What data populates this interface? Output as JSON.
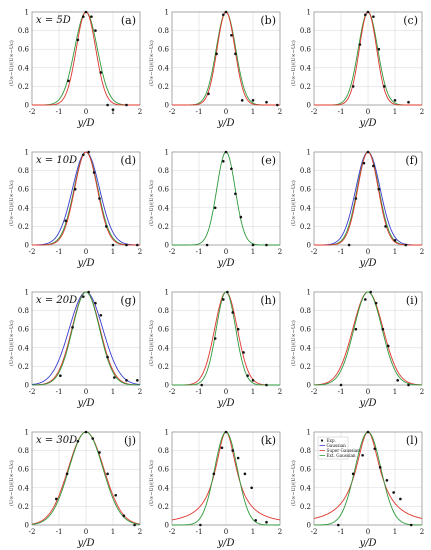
{
  "figure": {
    "x_axis_label": "y/D",
    "y_axis_label": "(U∞−U)/(U∞−Uc)",
    "colors": {
      "exp": "#111111",
      "gaussian": "#3b3bcc",
      "super_gaussian": "#e0342c",
      "ext_gaussian": "#2e9a3a",
      "grid": "#d6d6d6",
      "axis": "#8c8c8c"
    }
  },
  "chart_data": [
    {
      "type": "line",
      "panel_label": "(a)",
      "row_label": "x = 5D",
      "xlim": [
        -2,
        2
      ],
      "ylim": [
        0,
        1
      ],
      "x_ticks": [
        -2,
        -1,
        0,
        1,
        2
      ],
      "y_ticks": [
        0,
        0.2,
        0.4,
        0.6,
        0.8,
        1
      ],
      "grid": true,
      "series": [
        {
          "name": "Ext. Gaussian",
          "kind": "gauss",
          "mu": 0.0,
          "sigma": 0.42
        },
        {
          "name": "Super Gaussian",
          "kind": "gauss",
          "mu": 0.0,
          "sigma": 0.36
        }
      ],
      "points": [
        [
          -0.65,
          0.26
        ],
        [
          -0.3,
          0.7
        ],
        [
          -0.1,
          0.95
        ],
        [
          0.0,
          1.0
        ],
        [
          0.2,
          0.95
        ],
        [
          0.35,
          0.8
        ],
        [
          0.55,
          0.35
        ],
        [
          0.8,
          0.0
        ],
        [
          1.0,
          -0.05
        ],
        [
          1.5,
          0.0
        ]
      ]
    },
    {
      "type": "line",
      "panel_label": "(b)",
      "row_label": "",
      "xlim": [
        -2,
        2
      ],
      "ylim": [
        0,
        1
      ],
      "x_ticks": [
        -2,
        -1,
        0,
        1,
        2
      ],
      "y_ticks": [
        0,
        0.2,
        0.4,
        0.6,
        0.8,
        1
      ],
      "grid": true,
      "series": [
        {
          "name": "Ext. Gaussian",
          "kind": "gauss",
          "mu": 0.0,
          "sigma": 0.36
        },
        {
          "name": "Super Gaussian",
          "kind": "gauss",
          "mu": 0.0,
          "sigma": 0.33
        }
      ],
      "points": [
        [
          -0.65,
          0.12
        ],
        [
          -0.35,
          0.55
        ],
        [
          -0.1,
          0.97
        ],
        [
          0.0,
          1.0
        ],
        [
          0.2,
          0.75
        ],
        [
          0.35,
          0.55
        ],
        [
          0.6,
          0.05
        ],
        [
          1.0,
          0.05
        ],
        [
          1.5,
          0.03
        ],
        [
          1.9,
          0.0
        ]
      ]
    },
    {
      "type": "line",
      "panel_label": "(c)",
      "row_label": "",
      "xlim": [
        -2,
        2
      ],
      "ylim": [
        0,
        1
      ],
      "x_ticks": [
        -2,
        -1,
        0,
        1,
        2
      ],
      "y_ticks": [
        0,
        0.2,
        0.4,
        0.6,
        0.8,
        1
      ],
      "grid": true,
      "series": [
        {
          "name": "Ext. Gaussian",
          "kind": "gauss",
          "mu": 0.0,
          "sigma": 0.36
        },
        {
          "name": "Super Gaussian",
          "kind": "gauss",
          "mu": 0.0,
          "sigma": 0.32
        }
      ],
      "points": [
        [
          -0.55,
          0.2
        ],
        [
          -0.3,
          0.65
        ],
        [
          -0.1,
          0.97
        ],
        [
          0.0,
          1.0
        ],
        [
          0.2,
          0.95
        ],
        [
          0.4,
          0.6
        ],
        [
          0.6,
          0.2
        ],
        [
          1.0,
          0.05
        ],
        [
          1.5,
          0.03
        ]
      ]
    },
    {
      "type": "line",
      "panel_label": "(d)",
      "row_label": "x = 10D",
      "xlim": [
        -2,
        2
      ],
      "ylim": [
        0,
        1
      ],
      "x_ticks": [
        -2,
        -1,
        0,
        1,
        2
      ],
      "y_ticks": [
        0,
        0.2,
        0.4,
        0.6,
        0.8,
        1
      ],
      "grid": true,
      "series": [
        {
          "name": "Gaussian",
          "kind": "gauss",
          "mu": 0.0,
          "sigma": 0.5
        },
        {
          "name": "Ext. Gaussian",
          "kind": "gauss",
          "mu": 0.0,
          "sigma": 0.44
        },
        {
          "name": "Super Gaussian",
          "kind": "gauss",
          "mu": 0.0,
          "sigma": 0.42
        }
      ],
      "points": [
        [
          -0.75,
          0.26
        ],
        [
          -0.4,
          0.6
        ],
        [
          -0.1,
          0.97
        ],
        [
          0.1,
          1.0
        ],
        [
          0.3,
          0.78
        ],
        [
          0.5,
          0.5
        ],
        [
          0.75,
          0.2
        ],
        [
          1.0,
          0.0
        ],
        [
          1.5,
          0.0
        ],
        [
          1.9,
          0.0
        ]
      ]
    },
    {
      "type": "line",
      "panel_label": "(e)",
      "row_label": "",
      "xlim": [
        -2,
        2
      ],
      "ylim": [
        0,
        1
      ],
      "x_ticks": [
        -2,
        -1,
        0,
        1,
        2
      ],
      "y_ticks": [
        0,
        0.2,
        0.4,
        0.6,
        0.8,
        1
      ],
      "grid": true,
      "series": [
        {
          "name": "Ext. Gaussian",
          "kind": "gauss",
          "mu": 0.0,
          "sigma": 0.34
        }
      ],
      "points": [
        [
          -0.7,
          0.0
        ],
        [
          -0.4,
          0.4
        ],
        [
          -0.1,
          0.9
        ],
        [
          0.0,
          1.0
        ],
        [
          0.2,
          0.82
        ],
        [
          0.35,
          0.55
        ],
        [
          0.55,
          0.3
        ],
        [
          1.0,
          0.0
        ],
        [
          1.5,
          0.0
        ]
      ]
    },
    {
      "type": "line",
      "panel_label": "(f)",
      "row_label": "",
      "xlim": [
        -2,
        2
      ],
      "ylim": [
        0,
        1
      ],
      "x_ticks": [
        -2,
        -1,
        0,
        1,
        2
      ],
      "y_ticks": [
        0,
        0.2,
        0.4,
        0.6,
        0.8,
        1
      ],
      "grid": true,
      "series": [
        {
          "name": "Gaussian",
          "kind": "gauss",
          "mu": 0.0,
          "sigma": 0.45
        },
        {
          "name": "Ext. Gaussian",
          "kind": "gauss",
          "mu": 0.0,
          "sigma": 0.4
        },
        {
          "name": "Super Gaussian",
          "kind": "gauss",
          "mu": 0.0,
          "sigma": 0.38
        }
      ],
      "points": [
        [
          -0.7,
          0.0
        ],
        [
          -0.45,
          0.5
        ],
        [
          -0.15,
          0.88
        ],
        [
          0.0,
          1.0
        ],
        [
          0.2,
          0.85
        ],
        [
          0.4,
          0.6
        ],
        [
          0.65,
          0.2
        ],
        [
          1.0,
          0.05
        ],
        [
          1.4,
          0.0
        ]
      ]
    },
    {
      "type": "line",
      "panel_label": "(g)",
      "row_label": "x = 20D",
      "xlim": [
        -2,
        2
      ],
      "ylim": [
        0,
        1
      ],
      "x_ticks": [
        -2,
        -1,
        0,
        1,
        2
      ],
      "y_ticks": [
        0,
        0.2,
        0.4,
        0.6,
        0.8,
        1
      ],
      "grid": true,
      "series": [
        {
          "name": "Gaussian",
          "kind": "gauss",
          "mu": 0.0,
          "sigma": 0.62
        },
        {
          "name": "Super Gaussian",
          "kind": "gauss",
          "mu": 0.0,
          "sigma": 0.52
        },
        {
          "name": "Ext. Gaussian",
          "kind": "gauss",
          "mu": 0.0,
          "sigma": 0.5
        }
      ],
      "points": [
        [
          -0.95,
          0.1
        ],
        [
          -0.5,
          0.62
        ],
        [
          -0.1,
          0.95
        ],
        [
          0.1,
          1.0
        ],
        [
          0.35,
          0.88
        ],
        [
          0.55,
          0.75
        ],
        [
          0.8,
          0.3
        ],
        [
          1.05,
          0.08
        ],
        [
          1.5,
          0.05
        ],
        [
          1.9,
          0.05
        ]
      ]
    },
    {
      "type": "line",
      "panel_label": "(h)",
      "row_label": "",
      "xlim": [
        -2,
        2
      ],
      "ylim": [
        0,
        1
      ],
      "x_ticks": [
        -2,
        -1,
        0,
        1,
        2
      ],
      "y_ticks": [
        0,
        0.2,
        0.4,
        0.6,
        0.8,
        1
      ],
      "grid": true,
      "series": [
        {
          "name": "Super Gaussian",
          "kind": "gauss",
          "mu": 0.0,
          "sigma": 0.42
        },
        {
          "name": "Ext. Gaussian",
          "kind": "gauss",
          "mu": 0.0,
          "sigma": 0.36
        }
      ],
      "points": [
        [
          -0.9,
          0.0
        ],
        [
          -0.4,
          0.5
        ],
        [
          -0.1,
          0.92
        ],
        [
          0.05,
          1.0
        ],
        [
          0.25,
          0.78
        ],
        [
          0.45,
          0.6
        ],
        [
          0.65,
          0.35
        ],
        [
          0.8,
          0.1
        ],
        [
          1.0,
          0.05
        ],
        [
          1.5,
          0.0
        ]
      ]
    },
    {
      "type": "line",
      "panel_label": "(i)",
      "row_label": "",
      "xlim": [
        -2,
        2
      ],
      "ylim": [
        0,
        1
      ],
      "x_ticks": [
        -2,
        -1,
        0,
        1,
        2
      ],
      "y_ticks": [
        0,
        0.2,
        0.4,
        0.6,
        0.8,
        1
      ],
      "grid": true,
      "series": [
        {
          "name": "Super Gaussian",
          "kind": "gauss",
          "mu": 0.0,
          "sigma": 0.56
        },
        {
          "name": "Ext. Gaussian",
          "kind": "gauss",
          "mu": 0.0,
          "sigma": 0.52
        }
      ],
      "points": [
        [
          -1.0,
          0.0
        ],
        [
          -0.45,
          0.6
        ],
        [
          -0.1,
          0.92
        ],
        [
          0.1,
          1.0
        ],
        [
          0.3,
          0.88
        ],
        [
          0.55,
          0.6
        ],
        [
          0.75,
          0.42
        ],
        [
          1.1,
          0.05
        ],
        [
          1.5,
          0.0
        ]
      ]
    },
    {
      "type": "line",
      "panel_label": "(j)",
      "row_label": "x = 30D",
      "xlim": [
        -2,
        2
      ],
      "ylim": [
        0,
        1
      ],
      "x_ticks": [
        -2,
        -1,
        0,
        1,
        2
      ],
      "y_ticks": [
        0,
        0.2,
        0.4,
        0.6,
        0.8,
        1
      ],
      "grid": true,
      "series": [
        {
          "name": "Super Gaussian",
          "kind": "gauss",
          "mu": 0.0,
          "sigma": 0.66
        },
        {
          "name": "Ext. Gaussian",
          "kind": "gauss",
          "mu": 0.0,
          "sigma": 0.63
        }
      ],
      "points": [
        [
          -1.1,
          0.28
        ],
        [
          -0.7,
          0.55
        ],
        [
          -0.3,
          0.9
        ],
        [
          0.0,
          1.0
        ],
        [
          0.25,
          0.93
        ],
        [
          0.5,
          0.78
        ],
        [
          0.8,
          0.55
        ],
        [
          1.1,
          0.32
        ],
        [
          1.4,
          0.1
        ],
        [
          1.8,
          0.0
        ]
      ]
    },
    {
      "type": "line",
      "panel_label": "(k)",
      "row_label": "",
      "xlim": [
        -2,
        2
      ],
      "ylim": [
        0,
        1
      ],
      "x_ticks": [
        -2,
        -1,
        0,
        1,
        2
      ],
      "y_ticks": [
        0,
        0.2,
        0.4,
        0.6,
        0.8,
        1
      ],
      "grid": true,
      "series": [
        {
          "name": "Super Gaussian",
          "kind": "lorentz",
          "mu": 0.0,
          "gamma": 0.48
        },
        {
          "name": "Ext. Gaussian",
          "kind": "gauss",
          "mu": 0.0,
          "sigma": 0.42
        }
      ],
      "points": [
        [
          -0.95,
          0.0
        ],
        [
          -0.45,
          0.55
        ],
        [
          -0.15,
          0.83
        ],
        [
          0.0,
          1.0
        ],
        [
          0.25,
          0.8
        ],
        [
          0.45,
          0.72
        ],
        [
          0.7,
          0.55
        ],
        [
          0.95,
          0.4
        ],
        [
          1.1,
          0.05
        ],
        [
          1.5,
          0.03
        ]
      ]
    },
    {
      "type": "line",
      "panel_label": "(l)",
      "row_label": "",
      "xlim": [
        -2,
        2
      ],
      "ylim": [
        0,
        1
      ],
      "x_ticks": [
        -2,
        -1,
        0,
        1,
        2
      ],
      "y_ticks": [
        0,
        0.2,
        0.4,
        0.6,
        0.8,
        1
      ],
      "grid": true,
      "legend": {
        "placement": "top-left",
        "entries": [
          "Exp.",
          "Gaussian",
          "Super Gaussian",
          "Ext. Gaussian"
        ]
      },
      "series": [
        {
          "name": "Super Gaussian",
          "kind": "lorentz",
          "mu": 0.0,
          "gamma": 0.55
        },
        {
          "name": "Ext. Gaussian",
          "kind": "gauss",
          "mu": 0.0,
          "sigma": 0.48
        }
      ],
      "points": [
        [
          -1.1,
          0.0
        ],
        [
          -0.55,
          0.55
        ],
        [
          -0.2,
          0.75
        ],
        [
          0.0,
          1.0
        ],
        [
          0.25,
          0.82
        ],
        [
          0.45,
          0.62
        ],
        [
          0.7,
          0.48
        ],
        [
          0.95,
          0.35
        ],
        [
          1.2,
          0.28
        ],
        [
          1.6,
          0.0
        ]
      ]
    }
  ]
}
